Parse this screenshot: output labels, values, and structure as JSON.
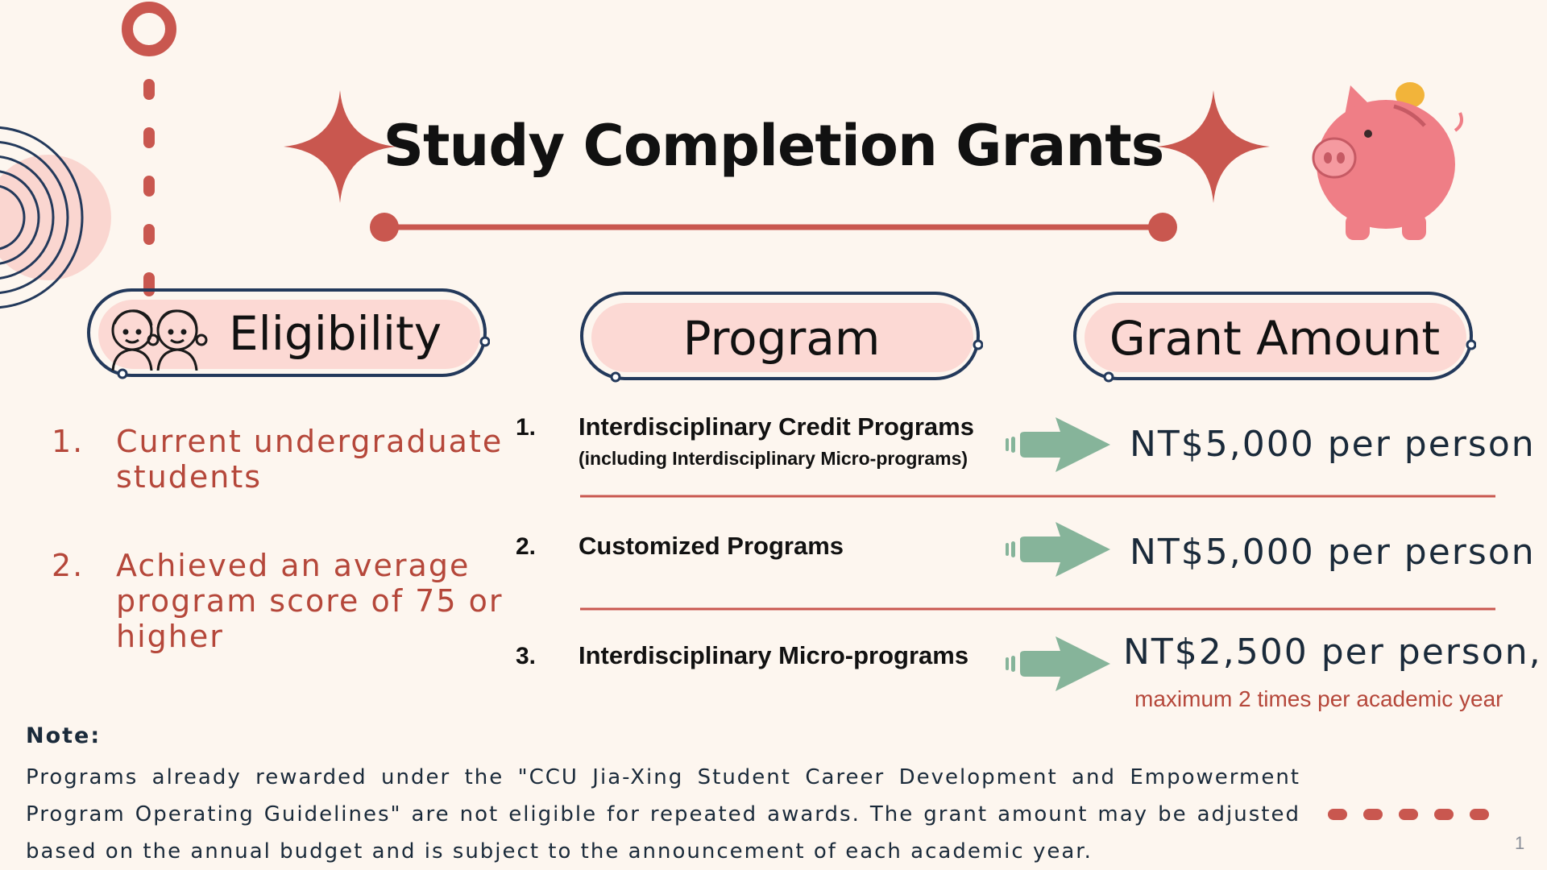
{
  "slide": {
    "title": "Study Completion Grants",
    "page_number": "1"
  },
  "headers": {
    "eligibility": "Eligibility",
    "program": "Program",
    "grant_amount": "Grant Amount"
  },
  "eligibility": [
    {
      "num": "1.",
      "text": "Current undergraduate students"
    },
    {
      "num": "2.",
      "text": "Achieved an average program score of 75 or higher"
    }
  ],
  "programs": [
    {
      "num": "1.",
      "name": "Interdisciplinary Credit Programs",
      "sub": "(including Interdisciplinary Micro-programs)",
      "amount": "NT$5,000 per person"
    },
    {
      "num": "2.",
      "name": "Customized Programs",
      "amount": "NT$5,000 per person"
    },
    {
      "num": "3.",
      "name": "Interdisciplinary Micro-programs",
      "amount": "NT$2,500 per person,",
      "amount_note": "maximum 2 times per academic year"
    }
  ],
  "note": {
    "label": "Note:",
    "text": "Programs already rewarded under the \"CCU Jia-Xing Student Career Development and Empowerment Program Operating Guidelines\" are not eligible for repeated awards. The grant amount may be adjusted based on the annual budget and is subject to the announcement of each academic year."
  },
  "icons": {
    "sparkle": "four-point-star-icon",
    "piggy_bank": "piggy-bank-icon",
    "children": "children-icon",
    "arrow": "arrow-right-icon"
  },
  "colors": {
    "background": "#fdf6ef",
    "accent_red": "#c9574f",
    "pill_pink": "#fcd9d4",
    "outline_navy": "#23395b",
    "arrow_green": "#86b49a",
    "text_red": "#b5473a"
  }
}
